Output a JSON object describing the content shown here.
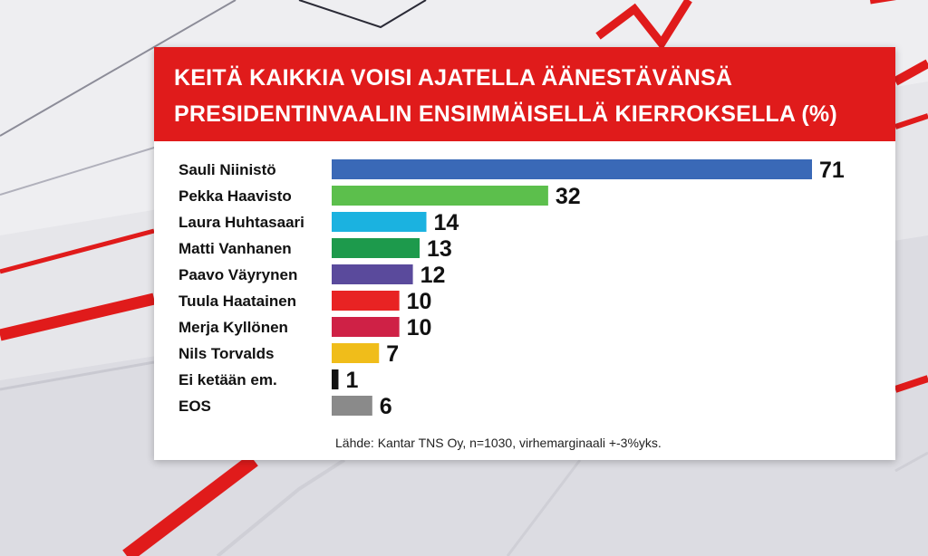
{
  "title": {
    "line1": "KEITÄ KAIKKIA VOISI AJATELLA ÄÄNESTÄVÄNSÄ",
    "line2": "PRESIDENTINVAALIN ENSIMMÄISELLÄ KIERROKSELLA (%)"
  },
  "source": "Lähde: Kantar TNS Oy, n=1030, virhemarginaali +-3%yks.",
  "chart_data": {
    "type": "bar",
    "orientation": "horizontal",
    "title": "KEITÄ KAIKKIA VOISI AJATELLA ÄÄNESTÄVÄNSÄ PRESIDENTINVAALIN ENSIMMÄISELLÄ KIERROKSELLA (%)",
    "xlabel": "",
    "ylabel": "",
    "unit": "%",
    "xlim": [
      0,
      71
    ],
    "categories": [
      "Sauli Niinistö",
      "Pekka Haavisto",
      "Laura Huhtasaari",
      "Matti Vanhanen",
      "Paavo Väyrynen",
      "Tuula Haatainen",
      "Merja Kyllönen",
      "Nils Torvalds",
      "Ei ketään em.",
      "EOS"
    ],
    "values": [
      71,
      32,
      14,
      13,
      12,
      10,
      10,
      7,
      1,
      6
    ],
    "colors": [
      "#3a69b7",
      "#5cbf4c",
      "#1bb2e0",
      "#1d9a4c",
      "#5a4a9c",
      "#e82323",
      "#cf2146",
      "#f0bd1a",
      "#111111",
      "#8a8a8a"
    ]
  }
}
